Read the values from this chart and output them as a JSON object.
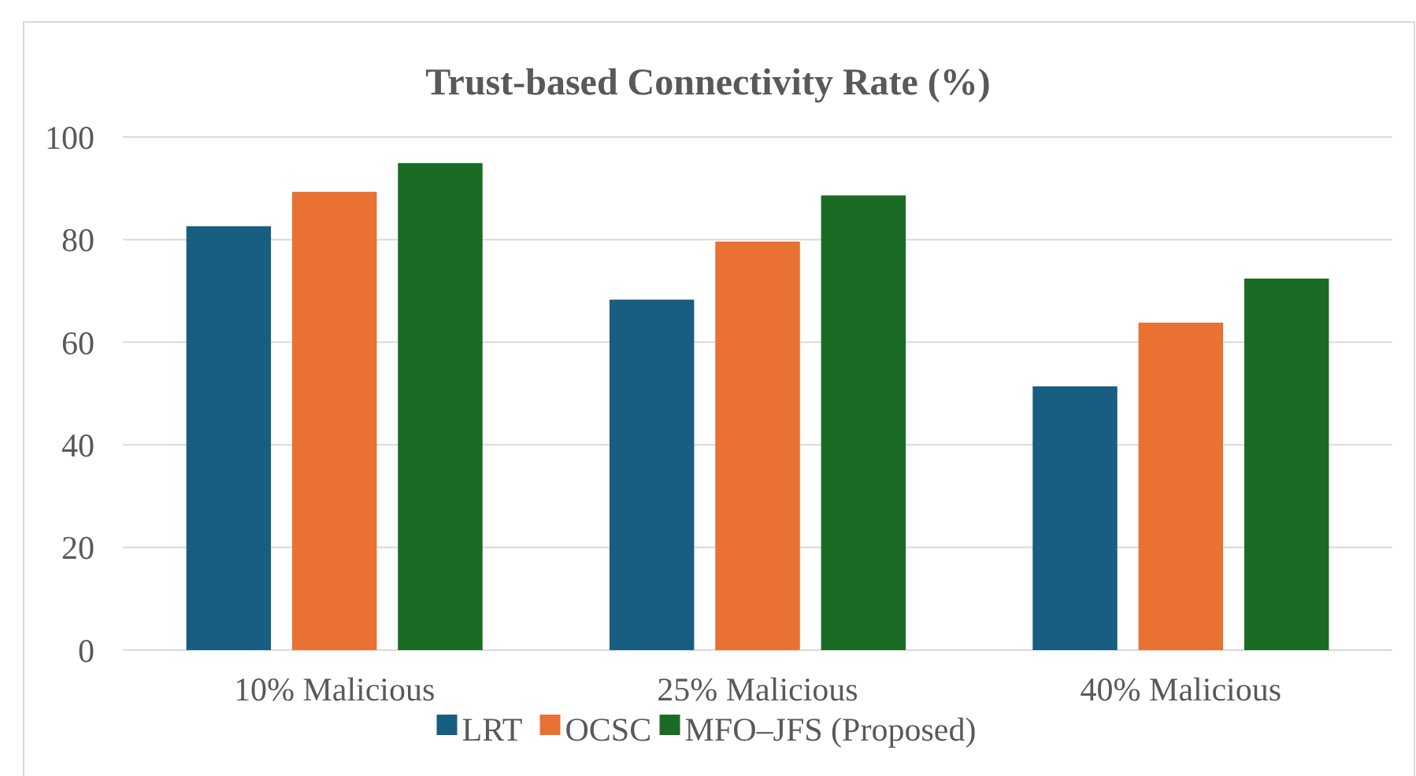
{
  "chart_data": {
    "type": "bar",
    "title": "Trust-based Connectivity Rate (%)",
    "categories": [
      "10% Malicious",
      "25% Malicious",
      "40% Malicious"
    ],
    "series": [
      {
        "name": "LRT",
        "color": "#175e80",
        "values": [
          82.6,
          68.3,
          51.4
        ]
      },
      {
        "name": "OCSC",
        "color": "#e97132",
        "values": [
          89.3,
          79.6,
          63.8
        ]
      },
      {
        "name": "MFO–JFS (Proposed)",
        "color": "#1a6b24",
        "values": [
          94.9,
          88.6,
          72.4
        ]
      }
    ],
    "ylim": [
      0,
      100
    ],
    "yticks": [
      0,
      20,
      40,
      60,
      80,
      100
    ],
    "grid": "y",
    "legend": "bottom"
  }
}
